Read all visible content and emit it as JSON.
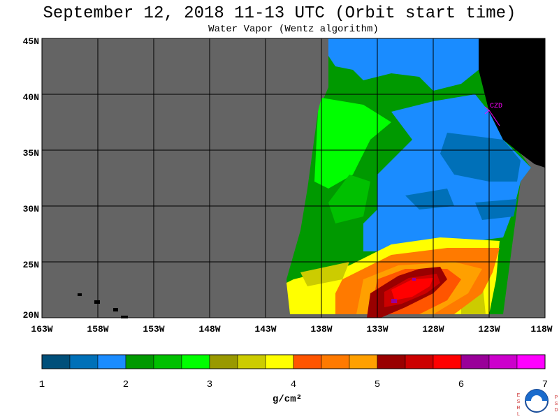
{
  "title": "September 12, 2018  11-13 UTC  (Orbit start time)",
  "subtitle": "Water Vapor (Wentz algorithm)",
  "lat_labels": [
    "45N",
    "40N",
    "35N",
    "30N",
    "25N",
    "20N"
  ],
  "lon_labels": [
    "163W",
    "158W",
    "153W",
    "148W",
    "143W",
    "138W",
    "133W",
    "128W",
    "123W",
    "118W"
  ],
  "colorbar": {
    "ticks": [
      "1",
      "2",
      "3",
      "4",
      "5",
      "6",
      "7"
    ],
    "units": "g/cm²",
    "colors": [
      "#004f7a",
      "#0070b8",
      "#1a8cff",
      "#009900",
      "#00c000",
      "#00ff00",
      "#999900",
      "#cccc00",
      "#ffff00",
      "#ff5500",
      "#ff7a00",
      "#ffa000",
      "#990000",
      "#cc0000",
      "#ff0000",
      "#990099",
      "#cc00cc",
      "#ff00ff"
    ]
  },
  "station": "CZD",
  "logo_left": "ESRL",
  "logo_right": "PSD",
  "colors": {
    "land_gray": "#646464",
    "continent": "#000000",
    "grid": "#000000"
  }
}
